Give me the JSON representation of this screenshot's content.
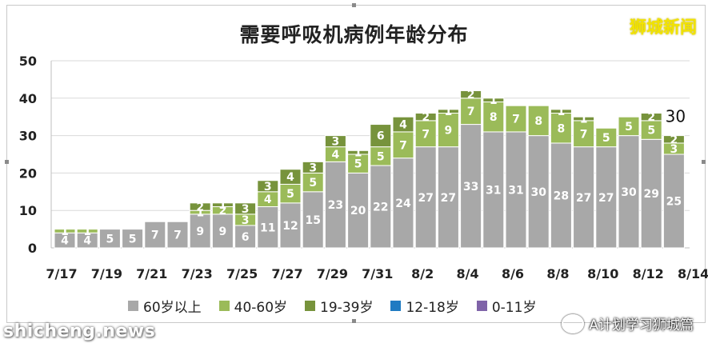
{
  "brand": "狮城新闻",
  "watermark": "shicheng.news",
  "wechat_label": "A计划学习狮城篇",
  "colors": {
    "60岁以上": "#a8a8a8",
    "40-60岁": "#9bbb59",
    "19-39岁": "#77933c",
    "12-18岁": "#1f7bc2",
    "0-11岁": "#7f63a8"
  },
  "chart_data": {
    "type": "bar",
    "stacked": true,
    "title": "需要呼吸机病例年龄分布",
    "ylim": [
      0,
      50
    ],
    "yticks": [
      0,
      10,
      20,
      30,
      40,
      50
    ],
    "grid": true,
    "legend_position": "bottom",
    "xtick_labels": [
      "7/17",
      "7/19",
      "7/21",
      "7/23",
      "7/25",
      "7/27",
      "7/29",
      "7/31",
      "8/2",
      "8/4",
      "8/6",
      "8/8",
      "8/10",
      "8/12",
      "8/14"
    ],
    "categories": [
      "7/17",
      "7/18",
      "7/19",
      "7/20",
      "7/21",
      "7/22",
      "7/23",
      "7/24",
      "7/25",
      "7/26",
      "7/27",
      "7/28",
      "7/29",
      "7/30",
      "7/31",
      "8/1",
      "8/2",
      "8/3",
      "8/4",
      "8/5",
      "8/6",
      "8/7",
      "8/8",
      "8/9",
      "8/10",
      "8/11",
      "8/12",
      "8/13"
    ],
    "series": [
      {
        "name": "60岁以上",
        "values": [
          4,
          4,
          5,
          5,
          7,
          7,
          9,
          9,
          6,
          11,
          12,
          15,
          23,
          20,
          22,
          24,
          27,
          27,
          33,
          31,
          31,
          30,
          28,
          27,
          27,
          30,
          29,
          25
        ]
      },
      {
        "name": "40-60岁",
        "values": [
          1,
          1,
          0,
          0,
          0,
          0,
          1,
          2,
          3,
          4,
          5,
          5,
          4,
          5,
          5,
          7,
          7,
          9,
          7,
          8,
          7,
          8,
          8,
          7,
          5,
          5,
          5,
          3
        ]
      },
      {
        "name": "19-39岁",
        "values": [
          0,
          0,
          0,
          0,
          0,
          0,
          2,
          1,
          3,
          3,
          4,
          3,
          3,
          1,
          6,
          4,
          2,
          1,
          2,
          1,
          0,
          0,
          1,
          1,
          0,
          0,
          2,
          2
        ]
      },
      {
        "name": "12-18岁",
        "values": [
          0,
          0,
          0,
          0,
          0,
          0,
          0,
          0,
          0,
          0,
          0,
          0,
          0,
          0,
          0,
          0,
          0,
          0,
          0,
          0,
          0,
          0,
          0,
          0,
          0,
          0,
          0,
          0
        ]
      },
      {
        "name": "0-11岁",
        "values": [
          0,
          0,
          0,
          0,
          0,
          0,
          0,
          0,
          0,
          0,
          0,
          0,
          0,
          0,
          0,
          0,
          0,
          0,
          0,
          0,
          0,
          0,
          0,
          0,
          0,
          0,
          0,
          0
        ]
      }
    ],
    "annotation": "30"
  }
}
